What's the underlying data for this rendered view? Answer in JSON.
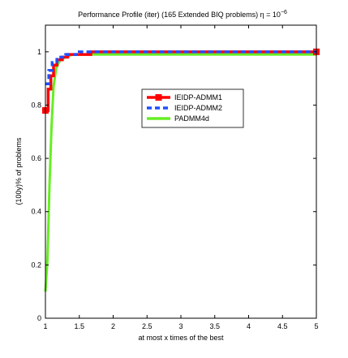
{
  "chart_data": {
    "type": "line",
    "title_main": "Performance Profile (iter) (165 Extended BIQ problems) ",
    "title_eta": "η",
    "title_eq": " = 10",
    "title_exp": "−6",
    "xlabel": "at most x times of the best",
    "ylabel": "(100y)% of problems",
    "xlim": [
      1,
      5
    ],
    "ylim": [
      0,
      1.1
    ],
    "xticks": [
      1,
      1.5,
      2,
      2.5,
      3,
      3.5,
      4,
      4.5,
      5
    ],
    "xtick_labels": [
      "1",
      "1.5",
      "2",
      "2.5",
      "3",
      "3.5",
      "4",
      "4.5",
      "5"
    ],
    "yticks": [
      0,
      0.2,
      0.4,
      0.6,
      0.8,
      1
    ],
    "ytick_labels": [
      "0",
      "0.2",
      "0.4",
      "0.6",
      "0.8",
      "1"
    ],
    "grid": false,
    "legend_position": "center-right",
    "series": [
      {
        "name": "IEIDP-ADMM1",
        "color": "#ff0000",
        "style": "solid-square-markers",
        "points": [
          [
            1,
            0.78
          ],
          [
            1.04,
            0.78
          ],
          [
            1.04,
            0.86
          ],
          [
            1.08,
            0.86
          ],
          [
            1.08,
            0.91
          ],
          [
            1.12,
            0.91
          ],
          [
            1.12,
            0.95
          ],
          [
            1.17,
            0.95
          ],
          [
            1.17,
            0.97
          ],
          [
            1.25,
            0.97
          ],
          [
            1.25,
            0.98
          ],
          [
            1.33,
            0.98
          ],
          [
            1.33,
            0.99
          ],
          [
            1.67,
            0.99
          ],
          [
            1.67,
            1.0
          ],
          [
            5,
            1.0
          ]
        ]
      },
      {
        "name": "IEIDP-ADMM2",
        "color": "#1f4fff",
        "style": "dashed",
        "points": [
          [
            1,
            0.88
          ],
          [
            1.05,
            0.88
          ],
          [
            1.05,
            0.93
          ],
          [
            1.1,
            0.93
          ],
          [
            1.1,
            0.96
          ],
          [
            1.17,
            0.96
          ],
          [
            1.17,
            0.98
          ],
          [
            1.3,
            0.98
          ],
          [
            1.3,
            0.99
          ],
          [
            1.5,
            0.99
          ],
          [
            1.5,
            1.0
          ],
          [
            5,
            1.0
          ]
        ]
      },
      {
        "name": "PADMM4d",
        "color": "#66ee22",
        "style": "solid",
        "points": [
          [
            1,
            0.1
          ],
          [
            1.03,
            0.22
          ],
          [
            1.06,
            0.5
          ],
          [
            1.09,
            0.72
          ],
          [
            1.12,
            0.87
          ],
          [
            1.16,
            0.94
          ],
          [
            1.22,
            0.97
          ],
          [
            1.3,
            0.98
          ],
          [
            1.4,
            0.99
          ],
          [
            5,
            0.99
          ]
        ]
      }
    ]
  }
}
